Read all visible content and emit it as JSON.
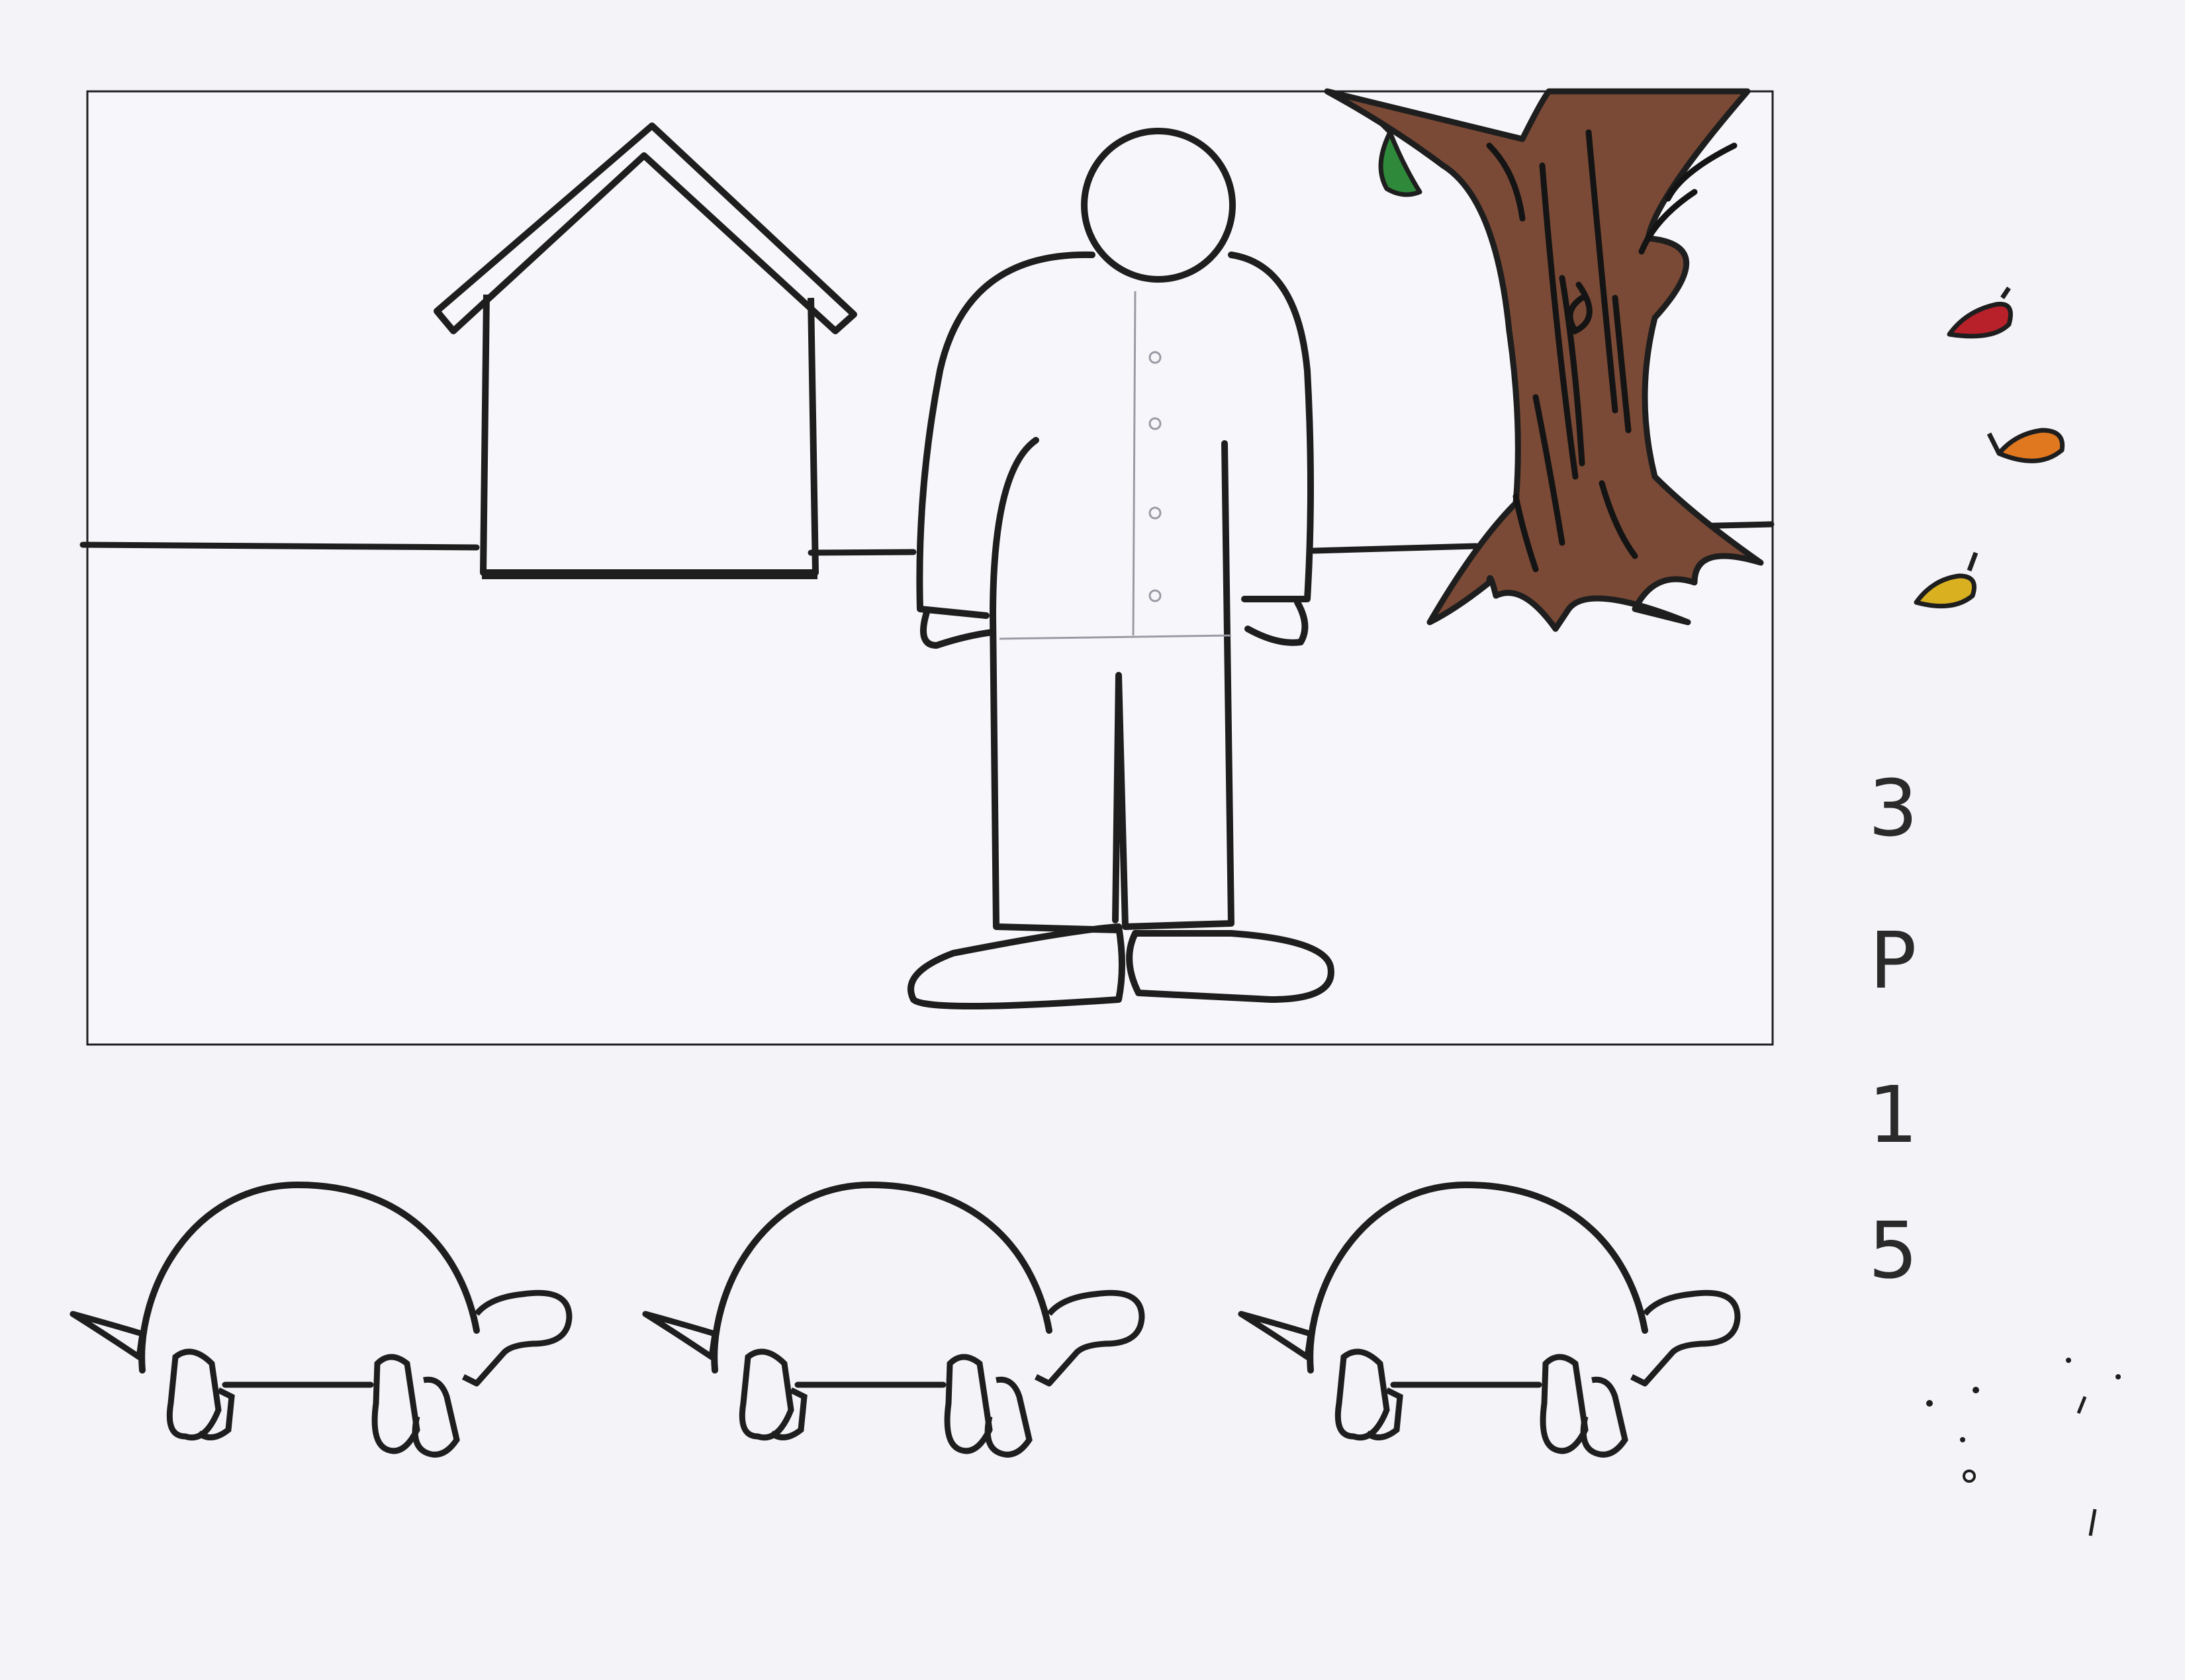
{
  "sheet": {
    "background_color": "#f3f3f8",
    "ink_color": "#1e1e1e",
    "tree_color": "#7a4a36",
    "leaf_colors": [
      "#2e8a3a",
      "#b8202a",
      "#e07820",
      "#d8b020"
    ]
  },
  "code": [
    "3",
    "P",
    "1",
    "5"
  ],
  "scene": {
    "icons": [
      "house-icon",
      "person-icon",
      "tree-icon",
      "leaf-icon",
      "tortoise-icon"
    ],
    "tortoise_count": 3
  }
}
